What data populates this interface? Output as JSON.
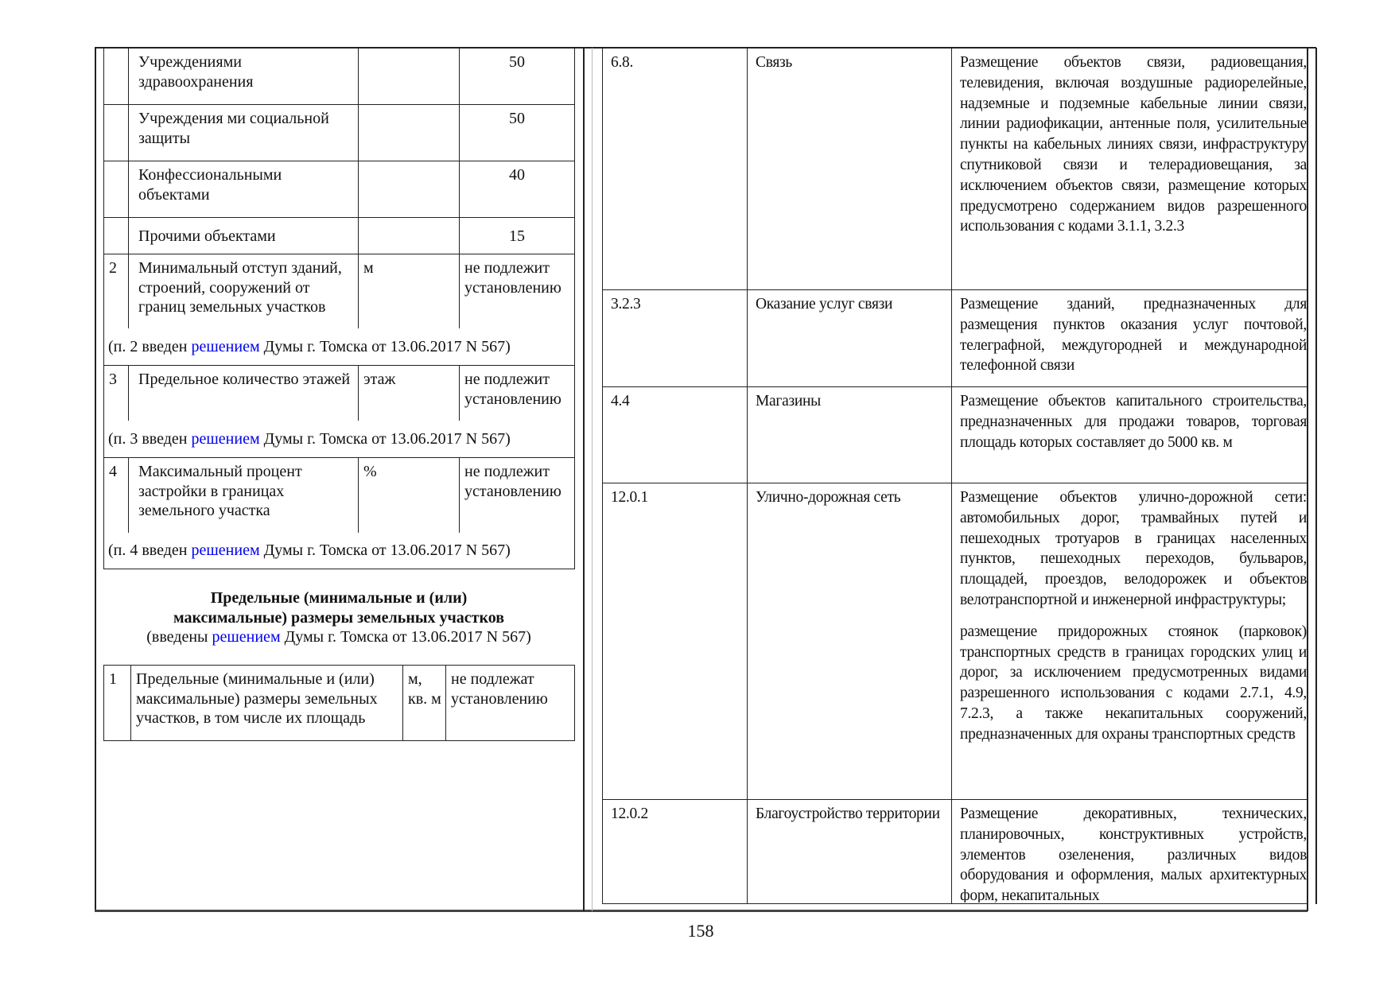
{
  "left_table": {
    "rows": [
      {
        "num": "",
        "name": "Учреждениями здравоохранения",
        "unit": "",
        "value": "50"
      },
      {
        "num": "",
        "name": "Учреждения ми социальной защиты",
        "unit": "",
        "value": "50"
      },
      {
        "num": "",
        "name": "Конфессиональными объектами",
        "unit": "",
        "value": "40"
      },
      {
        "num": "",
        "name": "Прочими объектами",
        "unit": "",
        "value": "15"
      },
      {
        "num": "2",
        "name": "Минимальный отступ зданий, строений, сооружений от границ земельных участков",
        "unit": "м",
        "value": "не подлежит установлению"
      },
      {
        "num": "3",
        "name": "Предельное количество этажей",
        "unit": "этаж",
        "value": "не подлежит установлению"
      },
      {
        "num": "4",
        "name": "Максимальный процент застройки в границах земельного участка",
        "unit": "%",
        "value": "не подлежит установлению"
      }
    ],
    "notes": [
      {
        "before": "(п. 2 введен ",
        "link": "решением",
        "after": " Думы г. Томска от 13.06.2017 N 567)"
      },
      {
        "before": "(п. 3 введен ",
        "link": "решением",
        "after": " Думы г. Томска от 13.06.2017 N 567)"
      },
      {
        "before": "(п. 4 введен ",
        "link": "решением",
        "after": " Думы г. Томска от 13.06.2017 N 567)"
      }
    ]
  },
  "section": {
    "title_line1": "Предельные (минимальные и (или)",
    "title_line2": "максимальные) размеры земельных участков",
    "note_before": "(введены ",
    "note_link": "решением",
    "note_after": " Думы г. Томска от 13.06.2017 N 567)"
  },
  "size_table": {
    "rows": [
      {
        "num": "1",
        "name": "Предельные (минимальные и (или) максимальные) размеры земельных участков, в том числе их площадь",
        "unit": "м, кв. м",
        "value": "не подлежат установлению"
      }
    ]
  },
  "right_table": {
    "rows": [
      {
        "code": "6.8.",
        "name": "Связь",
        "desc": [
          "Размещение объектов связи, радиовещания, телевидения, включая воздушные радиорелейные, надземные и подземные кабельные линии связи, линии радиофикации, антенные поля, усилительные пункты на кабельных линиях связи, инфраструктуру спутниковой связи и телерадиовещания, за исключением объектов связи, размещение которых предусмотрено содержанием видов разрешенного использования с кодами 3.1.1, 3.2.3"
        ]
      },
      {
        "code": "3.2.3",
        "name": "Оказание услуг связи",
        "desc": [
          "Размещение зданий, предназначенных для размещения пунктов оказания услуг почтовой, телеграфной, междугородней и международной телефонной связи"
        ]
      },
      {
        "code": "4.4",
        "name": "Магазины",
        "desc": [
          "Размещение объектов капитального строительства, предназначенных для продажи товаров, торговая площадь которых составляет до 5000 кв. м"
        ]
      },
      {
        "code": "12.0.1",
        "name": "Улично-дорожная сеть",
        "desc": [
          "Размещение объектов улично-дорожной сети: автомобильных дорог, трамвайных путей и пешеходных тротуаров в границах населенных пунктов, пешеходных переходов, бульваров, площадей, проездов, велодорожек и объектов велотранспортной и инженерной инфраструктуры;",
          "размещение придорожных стоянок (парковок) транспортных средств в границах городских улиц и дорог, за исключением предусмотренных видами разрешенного использования с кодами 2.7.1, 4.9, 7.2.3, а также некапитальных сооружений, предназначенных для охраны транспортных средств"
        ]
      },
      {
        "code": "12.0.2",
        "name": "Благоустройство территории",
        "desc": [
          "Размещение декоративных, технических, планировочных, конструктивных устройств, элементов озеленения, различных видов оборудования и оформления, малых архитектурных форм, некапитальных"
        ]
      }
    ]
  },
  "footer": {
    "page_number": "158"
  },
  "colors": {
    "link": "#0000ee",
    "text": "#111111",
    "border": "#222222"
  }
}
